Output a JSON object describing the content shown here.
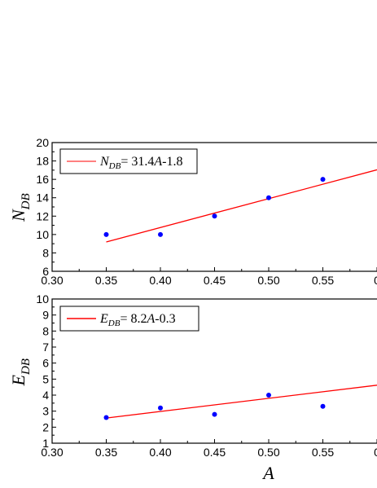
{
  "chart_data": [
    {
      "type": "scatter",
      "xlim": [
        0.3,
        0.6
      ],
      "ylim": [
        6,
        20
      ],
      "x_ticks": [
        "0.30",
        "0.35",
        "0.40",
        "0.45",
        "0.50",
        "0.55",
        "0"
      ],
      "y_ticks": [
        "6",
        "8",
        "10",
        "12",
        "14",
        "16",
        "18",
        "20"
      ],
      "ylabel": {
        "main": "N",
        "sub": "DB"
      },
      "xlabel": "",
      "grid": false,
      "legend_placement": "top-left",
      "points": {
        "x": [
          0.35,
          0.4,
          0.45,
          0.5,
          0.55
        ],
        "y": [
          10,
          10,
          12,
          14,
          16
        ],
        "color": "#0000ff"
      },
      "fit": {
        "slope": 31.4,
        "intercept": -1.8,
        "x_start": 0.35,
        "x_end": 0.6,
        "color": "#ff0000"
      },
      "legend": {
        "var": "N",
        "sub": "DB",
        "eq_pre": "= 31.4",
        "eq_var": "A",
        "eq_post": "-1.8"
      }
    },
    {
      "type": "scatter",
      "xlim": [
        0.3,
        0.6
      ],
      "ylim": [
        1,
        10
      ],
      "x_ticks": [
        "0.30",
        "0.35",
        "0.40",
        "0.45",
        "0.50",
        "0.55",
        "0"
      ],
      "y_ticks": [
        "1",
        "2",
        "3",
        "4",
        "5",
        "6",
        "7",
        "8",
        "9",
        "10"
      ],
      "ylabel": {
        "main": "E",
        "sub": "DB"
      },
      "xlabel": "A",
      "grid": false,
      "legend_placement": "top-left",
      "points": {
        "x": [
          0.35,
          0.4,
          0.45,
          0.5,
          0.55
        ],
        "y": [
          2.6,
          3.2,
          2.8,
          4.0,
          3.3
        ],
        "color": "#0000ff"
      },
      "fit": {
        "slope": 8.2,
        "intercept": -0.3,
        "x_start": 0.35,
        "x_end": 0.6,
        "color": "#ff0000"
      },
      "legend": {
        "var": "E",
        "sub": "DB",
        "eq_pre": "= 8.2",
        "eq_var": "A",
        "eq_post": "-0.3"
      }
    }
  ]
}
